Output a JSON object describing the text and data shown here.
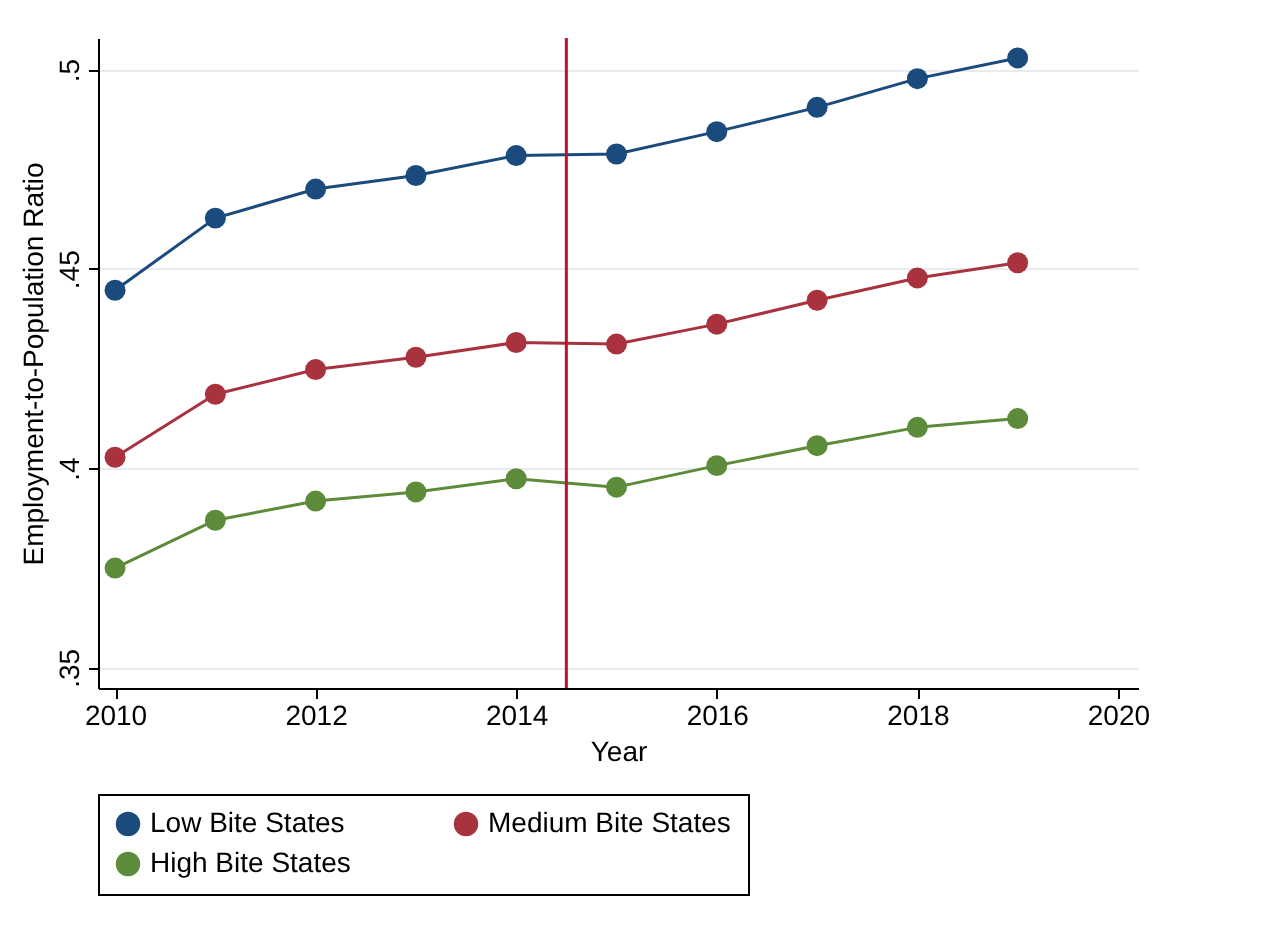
{
  "chart_data": {
    "type": "line",
    "xlabel": "Year",
    "ylabel": "Employment-to-Population Ratio",
    "x": [
      2010,
      2011,
      2012,
      2013,
      2014,
      2015,
      2016,
      2017,
      2018,
      2019
    ],
    "series": [
      {
        "name": "Low Bite States",
        "color": "#1a4b7c",
        "values": [
          0.4446,
          0.4627,
          0.47,
          0.4734,
          0.4784,
          0.4788,
          0.4844,
          0.4905,
          0.4977,
          0.5029
        ]
      },
      {
        "name": "Medium Bite States",
        "color": "#a8333f",
        "values": [
          0.4027,
          0.4185,
          0.4247,
          0.4278,
          0.4315,
          0.4311,
          0.4361,
          0.4421,
          0.4477,
          0.4515
        ]
      },
      {
        "name": "High Bite States",
        "color": "#5c8b3a",
        "values": [
          0.3749,
          0.3869,
          0.3917,
          0.394,
          0.3973,
          0.3952,
          0.4006,
          0.4056,
          0.4102,
          0.4124
        ]
      }
    ],
    "xlim": [
      2009.83,
      2020.2
    ],
    "xticks": [
      2010,
      2012,
      2014,
      2016,
      2018,
      2020
    ],
    "ylim": [
      0.3448,
      0.5079
    ],
    "yticks": [
      {
        "value": 0.35,
        "label": ".35"
      },
      {
        "value": 0.4,
        "label": ".4"
      },
      {
        "value": 0.45,
        "label": ".45"
      },
      {
        "value": 0.5,
        "label": ".5"
      }
    ],
    "ref_lines": [
      {
        "axis": "x",
        "value": 2014.5,
        "color": "#c0112e"
      }
    ],
    "grid": "y",
    "legend": "bottom",
    "marker": "circle",
    "line_style": "solid"
  }
}
